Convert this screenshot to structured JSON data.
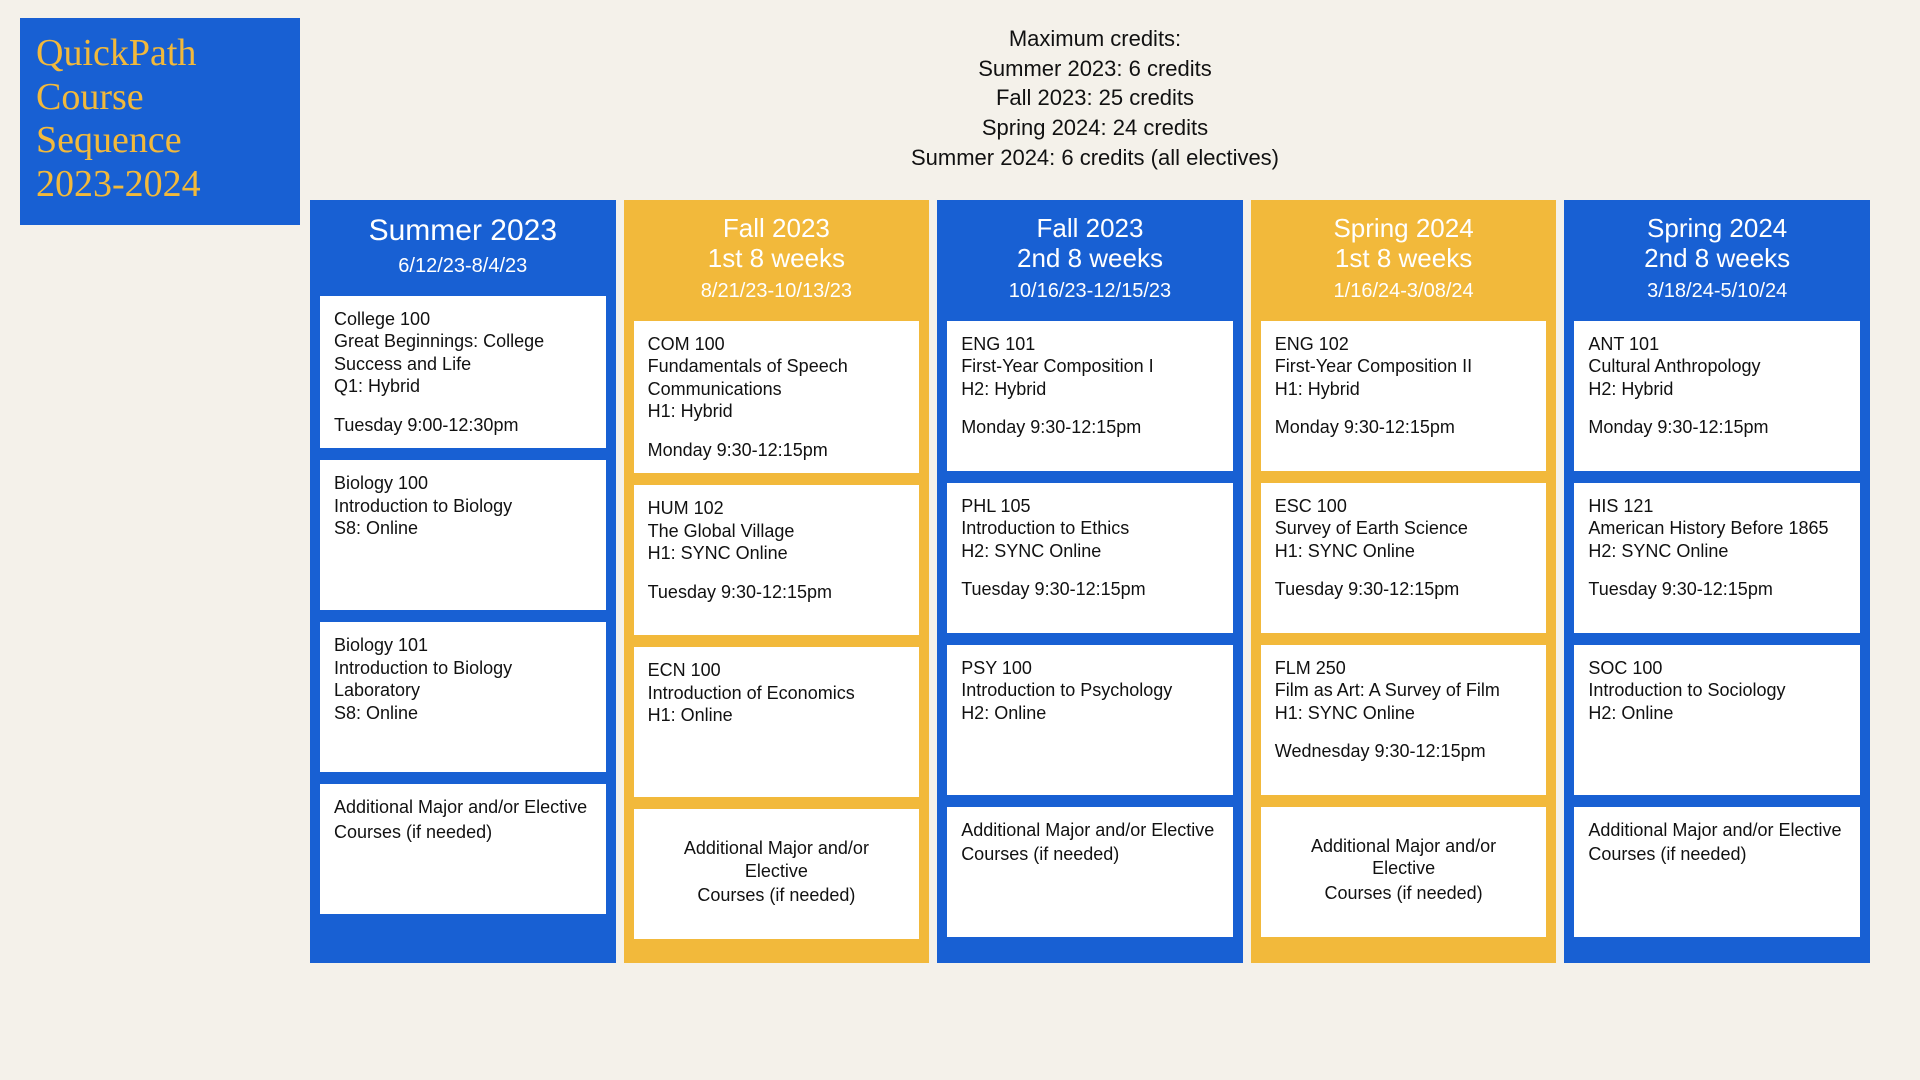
{
  "colors": {
    "blue": "#1860d3",
    "yellow": "#f2b93b",
    "bg": "#f4f1ea",
    "card": "#ffffff",
    "text": "#111111"
  },
  "title": {
    "l1": "QuickPath",
    "l2": "Course",
    "l3": "Sequence",
    "l4": "2023-2024"
  },
  "credits": {
    "l1": "Maximum credits:",
    "l2": "Summer 2023: 6 credits",
    "l3": "Fall 2023: 25 credits",
    "l4": "Spring 2024: 24 credits",
    "l5": "Summer 2024: 6 credits (all electives)"
  },
  "elective": {
    "l1": "Additional Major and/or Elective",
    "l2": "Courses (if needed)"
  },
  "elective_c": {
    "l1a": "Additional Major and/or",
    "l1b": "Elective",
    "l2": "Courses (if needed)"
  },
  "cols": [
    {
      "term": "Summer 2023",
      "sub": "",
      "dates": "6/12/23-8/4/23",
      "cards": [
        {
          "code": "College 100",
          "title": "Great Beginnings: College Success and Life",
          "mode": "Q1: Hybrid",
          "time": "Tuesday 9:00-12:30pm"
        },
        {
          "code": "Biology 100",
          "title": "Introduction to Biology",
          "mode": "S8: Online",
          "time": ""
        },
        {
          "code": "Biology 101",
          "title": "Introduction to Biology Laboratory",
          "mode": "S8: Online",
          "time": ""
        }
      ]
    },
    {
      "term": "Fall 2023",
      "sub": "1st 8 weeks",
      "dates": "8/21/23-10/13/23",
      "cards": [
        {
          "code": "COM 100",
          "title": "Fundamentals of Speech Communications",
          "mode": "H1: Hybrid",
          "time": "Monday 9:30-12:15pm"
        },
        {
          "code": "HUM 102",
          "title": "The Global Village",
          "mode": "H1: SYNC Online",
          "time": "Tuesday 9:30-12:15pm"
        },
        {
          "code": "ECN 100",
          "title": "Introduction of Economics",
          "mode": "H1: Online",
          "time": ""
        }
      ]
    },
    {
      "term": "Fall 2023",
      "sub": "2nd 8 weeks",
      "dates": "10/16/23-12/15/23",
      "cards": [
        {
          "code": "ENG 101",
          "title": "First-Year Composition I",
          "mode": "H2: Hybrid",
          "time": "Monday 9:30-12:15pm"
        },
        {
          "code": "PHL 105",
          "title": "Introduction to Ethics",
          "mode": "H2: SYNC Online",
          "time": "Tuesday 9:30-12:15pm"
        },
        {
          "code": "PSY 100",
          "title": "Introduction to Psychology",
          "mode": "H2: Online",
          "time": ""
        }
      ]
    },
    {
      "term": "Spring 2024",
      "sub": "1st 8 weeks",
      "dates": "1/16/24-3/08/24",
      "cards": [
        {
          "code": "ENG 102",
          "title": "First-Year Composition II",
          "mode": "H1: Hybrid",
          "time": "Monday 9:30-12:15pm"
        },
        {
          "code": "ESC 100",
          "title": "Survey of Earth Science",
          "mode": "H1: SYNC Online",
          "time": "Tuesday 9:30-12:15pm"
        },
        {
          "code": "FLM 250",
          "title": "Film as Art: A Survey of Film",
          "mode": "H1: SYNC Online",
          "time": "Wednesday 9:30-12:15pm"
        }
      ]
    },
    {
      "term": "Spring 2024",
      "sub": "2nd 8 weeks",
      "dates": "3/18/24-5/10/24",
      "cards": [
        {
          "code": "ANT 101",
          "title": "Cultural Anthropology",
          "mode": "H2: Hybrid",
          "time": "Monday 9:30-12:15pm"
        },
        {
          "code": "HIS 121",
          "title": "American History Before 1865",
          "mode": "H2: SYNC Online",
          "time": "Tuesday 9:30-12:15pm"
        },
        {
          "code": "SOC 100",
          "title": "Introduction to Sociology",
          "mode": "H2: Online",
          "time": ""
        }
      ]
    }
  ]
}
